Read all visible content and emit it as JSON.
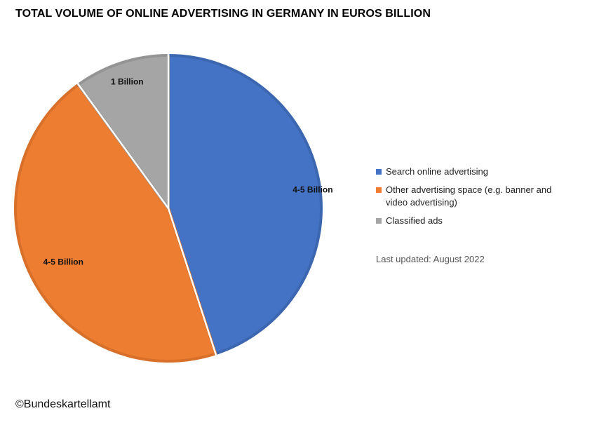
{
  "title": "TOTAL VOLUME OF ONLINE ADVERTISING IN GERMANY IN EUROS BILLION",
  "chart_data": {
    "type": "pie",
    "series": [
      {
        "name": "",
        "values": [
          4.5,
          4.5,
          1
        ],
        "data_labels": [
          "4-5 Billion",
          "4-5 Billion",
          "1 Billion"
        ]
      }
    ],
    "categories": [
      "Search online advertising",
      "Other advertising space (e.g. banner and video advertising)",
      "Classified ads"
    ],
    "colors": [
      "#4472C4",
      "#ED7D31",
      "#A5A5A5"
    ],
    "legend_position": "right"
  },
  "legend": {
    "items": [
      {
        "label": "Search online advertising",
        "color": "#4472C4"
      },
      {
        "label": "Other advertising space (e.g. banner and video advertising)",
        "color": "#ED7D31"
      },
      {
        "label": "Classified ads",
        "color": "#A5A5A5"
      }
    ]
  },
  "footer": {
    "updated": "Last updated: August 2022",
    "copyright": "©Bundeskartellamt"
  }
}
